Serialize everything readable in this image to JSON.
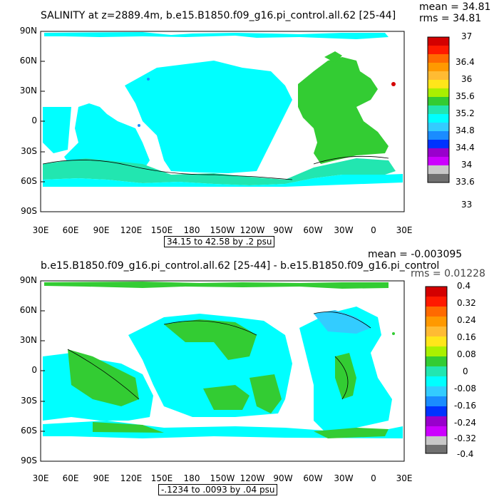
{
  "panel1": {
    "title": "SALINITY at z=2889.4m, b.e15.B1850.f09_g16.pi_control.all.62 [25-44]",
    "mean": "mean = 34.81",
    "rms": "rms = 34.81",
    "range": "34.15 to 42.58 by .2 psu",
    "colorbar_labels": [
      "37",
      "36.4",
      "36",
      "35.6",
      "35.2",
      "34.8",
      "34.4",
      "34",
      "33.6",
      "33"
    ],
    "colorbar_colors": [
      "#d40000",
      "#ff1a00",
      "#ff6a00",
      "#ff9900",
      "#ffbb33",
      "#ffe61a",
      "#aaf000",
      "#33cc33",
      "#22e6b0",
      "#00ffff",
      "#33ccff",
      "#1a8cff",
      "#0033ff",
      "#9900cc",
      "#cc00ff",
      "#c8c8c8",
      "#707070"
    ],
    "fills": {
      "atlantic": "#33cc33",
      "pacific": "#00ffff",
      "southern": "#22e6b0",
      "spot": "#d40000",
      "blue_spot": "#1a8cff"
    }
  },
  "panel2": {
    "title": "b.e15.B1850.f09_g16.pi_control.all.62 [25-44] - b.e15.B1850.f09_g16.pi_control",
    "mean": "mean = -0.003095",
    "rms": "rms = 0.01228",
    "range": "-.1234 to .0093 by .04 psu",
    "colorbar_labels": [
      "0.4",
      "0.32",
      "0.24",
      "0.16",
      "0.08",
      "0",
      "-0.08",
      "-0.16",
      "-0.24",
      "-0.32",
      "-0.4"
    ],
    "colorbar_colors": [
      "#d40000",
      "#ff1a00",
      "#ff6a00",
      "#ff9900",
      "#ffbb33",
      "#ffe61a",
      "#aaf000",
      "#33cc33",
      "#22e6b0",
      "#00ffff",
      "#33ccff",
      "#1a8cff",
      "#0033ff",
      "#9900cc",
      "#cc00ff",
      "#c8c8c8",
      "#707070"
    ],
    "fills": {
      "pos": "#33cc33",
      "neg": "#00ffff",
      "neg2": "#33ccff"
    }
  },
  "axes": {
    "lat_labels": [
      "90N",
      "60N",
      "30N",
      "0",
      "30S",
      "60S",
      "90S"
    ],
    "lon_labels": [
      "30E",
      "60E",
      "90E",
      "120E",
      "150E",
      "180",
      "150W",
      "120W",
      "90W",
      "60W",
      "30W",
      "0",
      "30E"
    ]
  }
}
